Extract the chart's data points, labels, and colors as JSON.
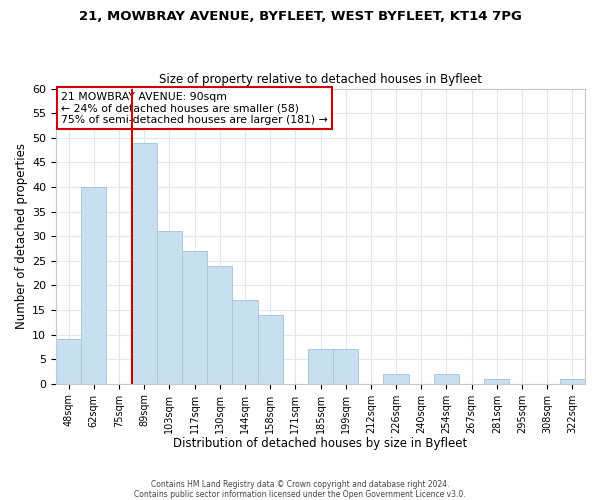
{
  "title1": "21, MOWBRAY AVENUE, BYFLEET, WEST BYFLEET, KT14 7PG",
  "title2": "Size of property relative to detached houses in Byfleet",
  "xlabel": "Distribution of detached houses by size in Byfleet",
  "ylabel": "Number of detached properties",
  "bar_labels": [
    "48sqm",
    "62sqm",
    "75sqm",
    "89sqm",
    "103sqm",
    "117sqm",
    "130sqm",
    "144sqm",
    "158sqm",
    "171sqm",
    "185sqm",
    "199sqm",
    "212sqm",
    "226sqm",
    "240sqm",
    "254sqm",
    "267sqm",
    "281sqm",
    "295sqm",
    "308sqm",
    "322sqm"
  ],
  "bar_values": [
    9,
    40,
    0,
    49,
    31,
    27,
    24,
    17,
    14,
    0,
    7,
    7,
    0,
    2,
    0,
    2,
    0,
    1,
    0,
    0,
    1
  ],
  "bar_color": "#c8dff0",
  "bar_edge_color": "#a8c8e0",
  "property_line_color": "#cc0000",
  "property_line_x": 3.5,
  "annotation_title": "21 MOWBRAY AVENUE: 90sqm",
  "annotation_line1": "← 24% of detached houses are smaller (58)",
  "annotation_line2": "75% of semi-detached houses are larger (181) →",
  "annotation_box_edge_color": "#cc0000",
  "ylim": [
    0,
    60
  ],
  "yticks": [
    0,
    5,
    10,
    15,
    20,
    25,
    30,
    35,
    40,
    45,
    50,
    55,
    60
  ],
  "footer1": "Contains HM Land Registry data © Crown copyright and database right 2024.",
  "footer2": "Contains public sector information licensed under the Open Government Licence v3.0.",
  "bg_color": "#ffffff",
  "grid_color": "#dde8f0"
}
